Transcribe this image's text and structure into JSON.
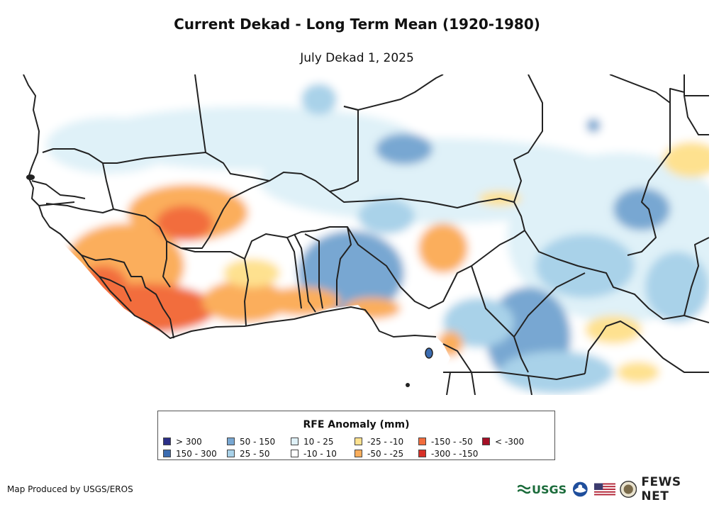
{
  "title": "Current Dekad - Long Term Mean (1920-1980)",
  "subtitle": "July Dekad 1, 2025",
  "legend": {
    "title": "RFE Anomaly (mm)",
    "items": [
      {
        "label": "> 300",
        "color": "#2b2f87"
      },
      {
        "label": "150 - 300",
        "color": "#3b6cb1"
      },
      {
        "label": "50 - 150",
        "color": "#78a7d2"
      },
      {
        "label": "25 - 50",
        "color": "#a9d2e9"
      },
      {
        "label": "10 - 25",
        "color": "#dff1f8"
      },
      {
        "label": "-10 - 10",
        "color": "#ffffff"
      },
      {
        "label": "-25 - -10",
        "color": "#fee18f"
      },
      {
        "label": "-50 - -25",
        "color": "#fbae5c"
      },
      {
        "label": "-150 - -50",
        "color": "#f26d3d"
      },
      {
        "label": "-300 - -150",
        "color": "#d73027"
      },
      {
        "label": "< -300",
        "color": "#a50f26"
      }
    ]
  },
  "credit": "Map Produced by USGS/EROS",
  "logos": {
    "usgs": "USGS",
    "fews": "FEWS NET"
  }
}
